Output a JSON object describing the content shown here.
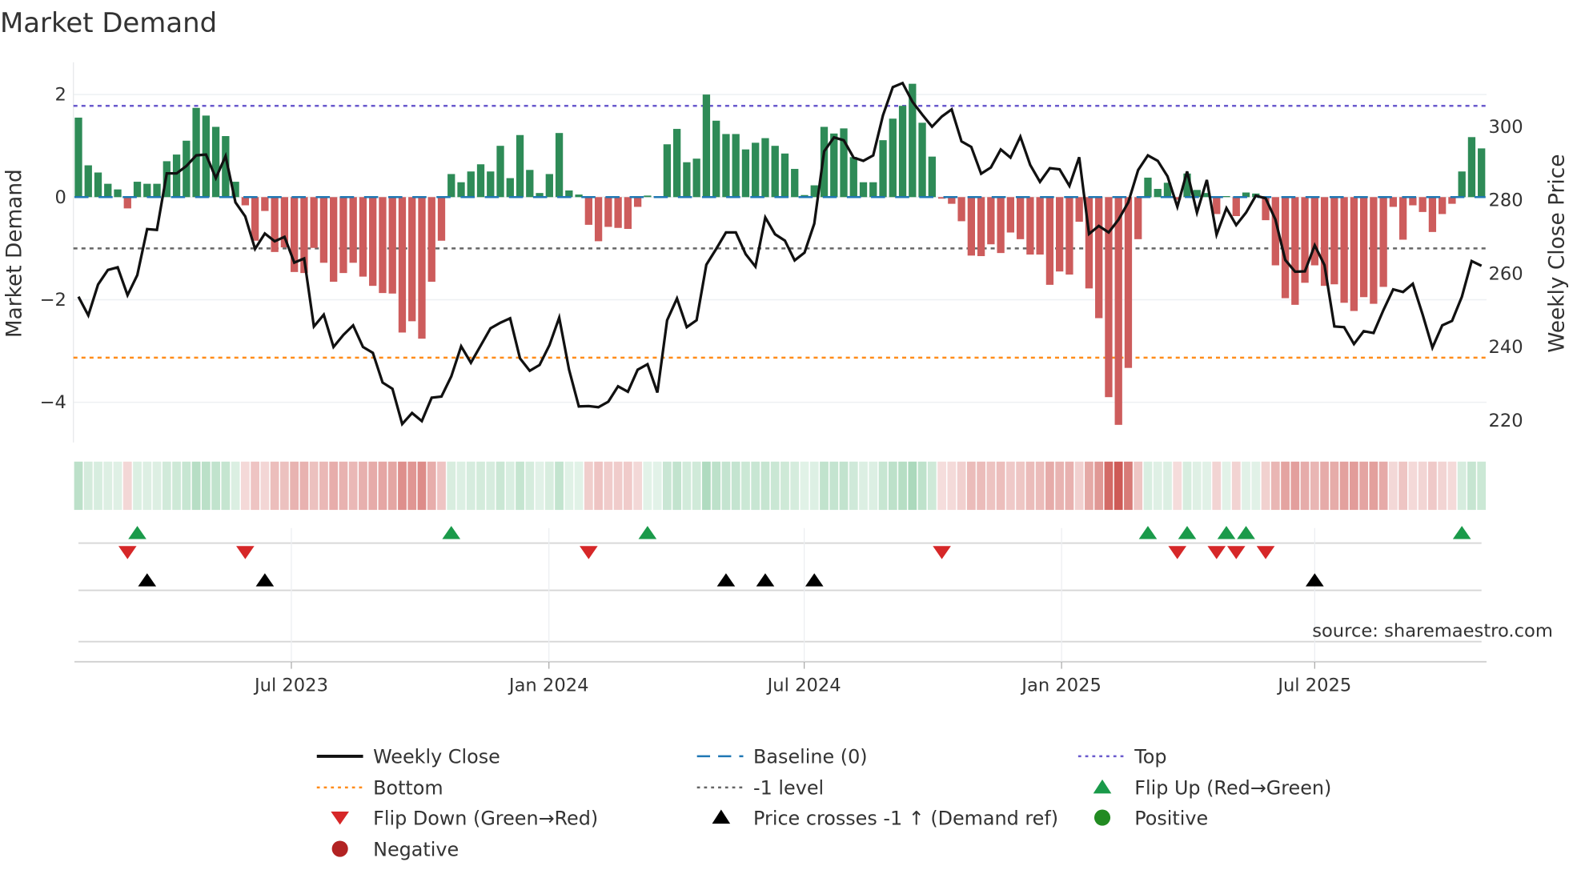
{
  "chart_data": {
    "type": "bar",
    "title": "Market Demand",
    "ylabel": "Market Demand",
    "ylabel_right": "Weekly Close Price",
    "ylim": [
      -4.85,
      2.65
    ],
    "ylim_right": [
      214,
      318
    ],
    "yticks": [
      2,
      0,
      -2,
      -4
    ],
    "yticks_labels": [
      "2",
      "0",
      "−2",
      "−4"
    ],
    "yticks_right": [
      300,
      280,
      260,
      240,
      220
    ],
    "yticks_right_labels": [
      "300",
      "280",
      "260",
      "240",
      "220"
    ],
    "xticks": [
      {
        "index": 21.7,
        "label": "Jul 2023"
      },
      {
        "index": 47.95,
        "label": "Jan 2024"
      },
      {
        "index": 73.97,
        "label": "Jul 2024"
      },
      {
        "index": 100.2,
        "label": "Jan 2025"
      },
      {
        "index": 126.0,
        "label": "Jul 2025"
      }
    ],
    "x_unit": "week index",
    "demand": [
      1.55,
      0.62,
      0.48,
      0.26,
      0.15,
      -0.22,
      0.3,
      0.26,
      0.26,
      0.7,
      0.83,
      1.1,
      1.74,
      1.59,
      1.37,
      1.19,
      0.3,
      -0.16,
      -0.85,
      -0.27,
      -1.07,
      -0.98,
      -1.46,
      -1.48,
      -0.99,
      -1.28,
      -1.65,
      -1.48,
      -1.28,
      -1.55,
      -1.73,
      -1.87,
      -1.88,
      -2.64,
      -2.42,
      -2.76,
      -1.65,
      -0.85,
      0.45,
      0.29,
      0.5,
      0.64,
      0.5,
      1.0,
      0.37,
      1.21,
      0.53,
      0.08,
      0.45,
      1.25,
      0.13,
      0.05,
      -0.54,
      -0.86,
      -0.58,
      -0.6,
      -0.62,
      -0.19,
      0.03,
      0.02,
      1.03,
      1.33,
      0.68,
      0.75,
      2.0,
      1.49,
      1.23,
      1.23,
      0.93,
      1.06,
      1.15,
      1.0,
      0.85,
      0.55,
      0.04,
      0.23,
      1.37,
      1.24,
      1.34,
      0.78,
      0.29,
      0.29,
      1.11,
      1.53,
      1.78,
      2.21,
      1.45,
      0.79,
      -0.03,
      -0.13,
      -0.47,
      -1.14,
      -1.15,
      -0.92,
      -1.09,
      -0.69,
      -0.82,
      -1.12,
      -1.12,
      -1.71,
      -1.45,
      -1.51,
      -0.48,
      -1.78,
      -2.36,
      -3.9,
      -4.44,
      -3.33,
      -0.82,
      0.38,
      0.16,
      0.28,
      -0.05,
      0.46,
      0.14,
      0.08,
      -0.33,
      0.02,
      -0.37,
      0.09,
      0.07,
      -0.45,
      -1.33,
      -1.97,
      -2.1,
      -1.67,
      -1.33,
      -1.73,
      -1.7,
      -2.06,
      -2.22,
      -1.95,
      -2.08,
      -1.75,
      -0.19,
      -0.83,
      -0.16,
      -0.29,
      -0.68,
      -0.33,
      -0.13,
      0.5,
      1.17,
      0.95
    ],
    "weekly_close": [
      253.7,
      248.6,
      257.0,
      261.0,
      261.7,
      254.1,
      259.6,
      272.1,
      271.9,
      287.3,
      287.3,
      289.3,
      292.2,
      292.4,
      286.0,
      292.0,
      279.4,
      275.6,
      266.7,
      270.9,
      268.8,
      270.0,
      263.0,
      264.1,
      245.6,
      248.8,
      240.0,
      243.3,
      245.9,
      240.0,
      238.4,
      230.3,
      228.6,
      219.0,
      222.0,
      219.8,
      226.2,
      226.5,
      232.0,
      240.2,
      235.7,
      240.4,
      245.1,
      246.6,
      247.8,
      236.9,
      233.5,
      235.1,
      240.5,
      248.0,
      233.8,
      223.8,
      223.9,
      223.6,
      225.1,
      229.3,
      227.8,
      233.8,
      235.3,
      227.6,
      247.3,
      253.2,
      245.4,
      247.3,
      262.4,
      266.7,
      271.2,
      271.2,
      265.3,
      261.9,
      275.3,
      270.7,
      269.0,
      263.6,
      265.7,
      273.6,
      293.3,
      297.1,
      296.3,
      291.6,
      290.7,
      292.2,
      303.1,
      310.8,
      311.9,
      306.8,
      303.3,
      300.0,
      302.8,
      304.7,
      296.0,
      294.5,
      287.2,
      288.9,
      293.8,
      291.6,
      297.3,
      289.6,
      285.0,
      288.7,
      288.4,
      283.9,
      291.7,
      270.8,
      273.0,
      271.2,
      274.7,
      279.4,
      288.2,
      292.2,
      290.7,
      286.5,
      278.2,
      287.8,
      276.6,
      285.5,
      270.6,
      277.8,
      273.2,
      276.6,
      281.2,
      280.5,
      274.7,
      263.7,
      260.5,
      260.6,
      267.7,
      262.3,
      245.6,
      245.4,
      240.8,
      244.3,
      243.8,
      250.0,
      255.7,
      255.0,
      257.2,
      248.8,
      239.8,
      245.9,
      247.1,
      253.7,
      263.4,
      262.1
    ],
    "levels": {
      "top": 1.78,
      "baseline": 0,
      "minus_one": -1.0,
      "bottom": -3.13
    },
    "flip_up_indices": [
      6,
      38,
      58,
      109,
      113,
      117,
      119,
      141
    ],
    "flip_down_indices": [
      5,
      17,
      52,
      88,
      112,
      116,
      118,
      121
    ],
    "price_cross_indices": [
      7,
      19,
      66,
      70,
      75,
      126
    ],
    "grid": true,
    "legend_position": "bottom-center"
  },
  "colors": {
    "positive": "#2e8b57",
    "negative": "#cd5c5c",
    "line": "#111111",
    "baseline": "#1f77b4",
    "top": "#6a5acd",
    "bottom": "#ff8c1a",
    "minus_one": "#666666",
    "flip_up": "#1a9a4a",
    "flip_down": "#d62728",
    "cross": "#000000",
    "dot_positive": "#228b22",
    "dot_negative": "#b22222"
  },
  "legend": {
    "weekly_close": "Weekly Close",
    "baseline": "Baseline (0)",
    "top": "Top",
    "bottom": "Bottom",
    "minus_one": "-1 level",
    "flip_up": "Flip Up (Red→Green)",
    "flip_down": "Flip Down (Green→Red)",
    "price_cross": "Price crosses -1 ↑ (Demand ref)",
    "positive": "Positive",
    "negative": "Negative"
  },
  "source": "source: sharemaestro.com"
}
